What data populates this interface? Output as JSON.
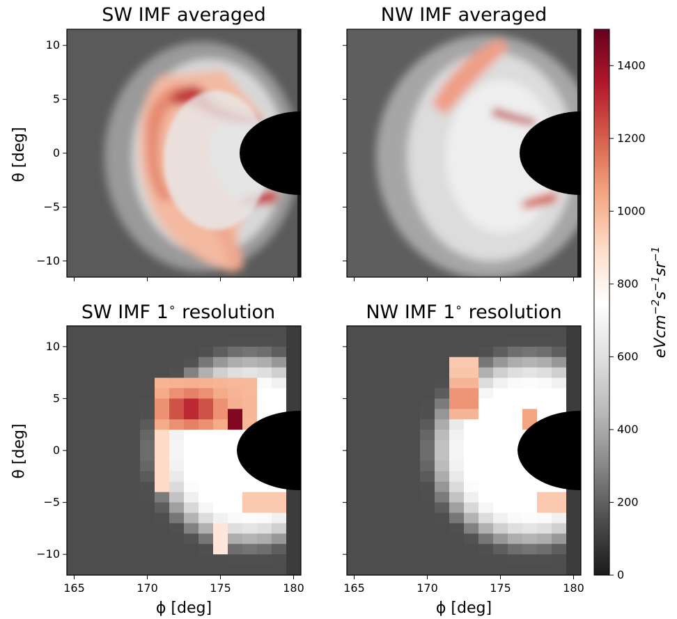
{
  "chart_data": [
    {
      "type": "heatmap",
      "title": "SW IMF averaged",
      "ylabel": "θ [deg]",
      "xlabel": "",
      "xlim": [
        164.5,
        180.5
      ],
      "ylim": [
        -11.5,
        11.5
      ],
      "yticks": [
        "10",
        "5",
        "0",
        "−5",
        "−10"
      ],
      "xticks": [],
      "features": [
        {
          "kind": "band",
          "phi": [
            170,
            177
          ],
          "theta": [
            2.5,
            6.5
          ],
          "value": 1300
        },
        {
          "kind": "arc",
          "phi": [
            168,
            172
          ],
          "theta": [
            -4,
            5
          ],
          "value": 900
        },
        {
          "kind": "band",
          "phi": [
            176,
            179
          ],
          "theta": [
            -5.5,
            -3.5
          ],
          "value": 1250
        },
        {
          "kind": "lobe",
          "phi": [
            172,
            175
          ],
          "theta": [
            -10,
            -5
          ],
          "value": 700
        }
      ]
    },
    {
      "type": "heatmap",
      "title": "NW IMF averaged",
      "ylabel": "",
      "xlabel": "",
      "xlim": [
        164.5,
        180.5
      ],
      "ylim": [
        -11.5,
        11.5
      ],
      "yticks": [],
      "xticks": [],
      "features": [
        {
          "kind": "band",
          "phi": [
            170,
            174
          ],
          "theta": [
            4,
            10
          ],
          "value": 900
        },
        {
          "kind": "band",
          "phi": [
            175,
            178
          ],
          "theta": [
            2.5,
            4
          ],
          "value": 1250
        },
        {
          "kind": "band",
          "phi": [
            176,
            179
          ],
          "theta": [
            -5.5,
            -3.5
          ],
          "value": 1050
        }
      ]
    },
    {
      "type": "heatmap",
      "title": "SW IMF 1$^\\circ$ resolution",
      "title_text": "SW IMF 1",
      "title_deg": "∘",
      "title_tail": " resolution",
      "ylabel": "θ [deg]",
      "xlabel": "ϕ [deg]",
      "xlim": [
        164.5,
        180.5
      ],
      "ylim": [
        -12,
        12
      ],
      "yticks": [
        "10",
        "5",
        "0",
        "−5",
        "−10"
      ],
      "xticks": [
        "165",
        "170",
        "175",
        "180"
      ],
      "grid_resolution": "1°"
    },
    {
      "type": "heatmap",
      "title_text": "NW IMF 1",
      "title_deg": "∘",
      "title_tail": " resolution",
      "ylabel": "",
      "xlabel": "ϕ [deg]",
      "xlim": [
        164.5,
        180.5
      ],
      "ylim": [
        -12,
        12
      ],
      "yticks": [],
      "xticks": [
        "165",
        "170",
        "175",
        "180"
      ],
      "grid_resolution": "1°"
    }
  ],
  "colorbar": {
    "label_base": "eVcm",
    "label_exp1": "−2",
    "label_mid1": "s",
    "label_exp2": "−1",
    "label_mid2": "sr",
    "label_exp3": "−1",
    "min": 0,
    "max": 1500,
    "ticks": [
      "0",
      "200",
      "400",
      "600",
      "800",
      "1000",
      "1200",
      "1400"
    ],
    "colormap": "RdGy_r",
    "stops": [
      "#1a1a1a",
      "#4d4d4d",
      "#878787",
      "#bababa",
      "#e0e0e0",
      "#ffffff",
      "#fddbc7",
      "#f4a582",
      "#d6604d",
      "#b2182b",
      "#67001f"
    ]
  },
  "earth_disk_color": "#000000"
}
